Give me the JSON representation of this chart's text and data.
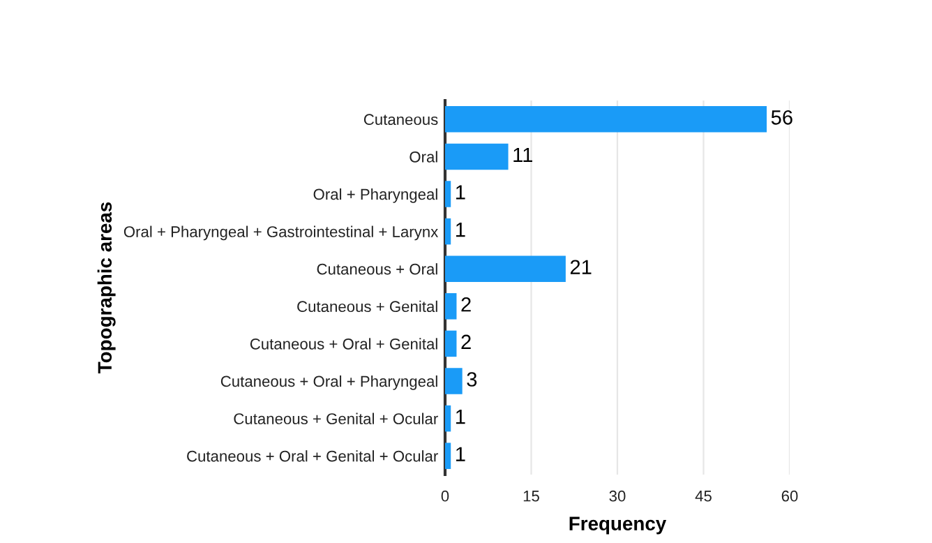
{
  "chart_data": {
    "type": "bar",
    "orientation": "horizontal",
    "xlabel": "Frequency",
    "ylabel": "Topographic areas",
    "categories": [
      "Cutaneous",
      "Oral",
      "Oral + Pharyngeal",
      "Oral + Pharyngeal + Gastrointestinal + Larynx",
      "Cutaneous + Oral",
      "Cutaneous + Genital",
      "Cutaneous + Oral + Genital",
      "Cutaneous + Oral + Pharyngeal",
      "Cutaneous + Genital + Ocular",
      "Cutaneous + Oral + Genital + Ocular"
    ],
    "values": [
      56,
      11,
      1,
      1,
      21,
      2,
      2,
      3,
      1,
      1
    ],
    "color": "#1a9bf7",
    "xlim": [
      0,
      60
    ],
    "xticks": [
      0,
      15,
      30,
      45,
      60
    ],
    "grid": "x",
    "data_labels": true
  }
}
